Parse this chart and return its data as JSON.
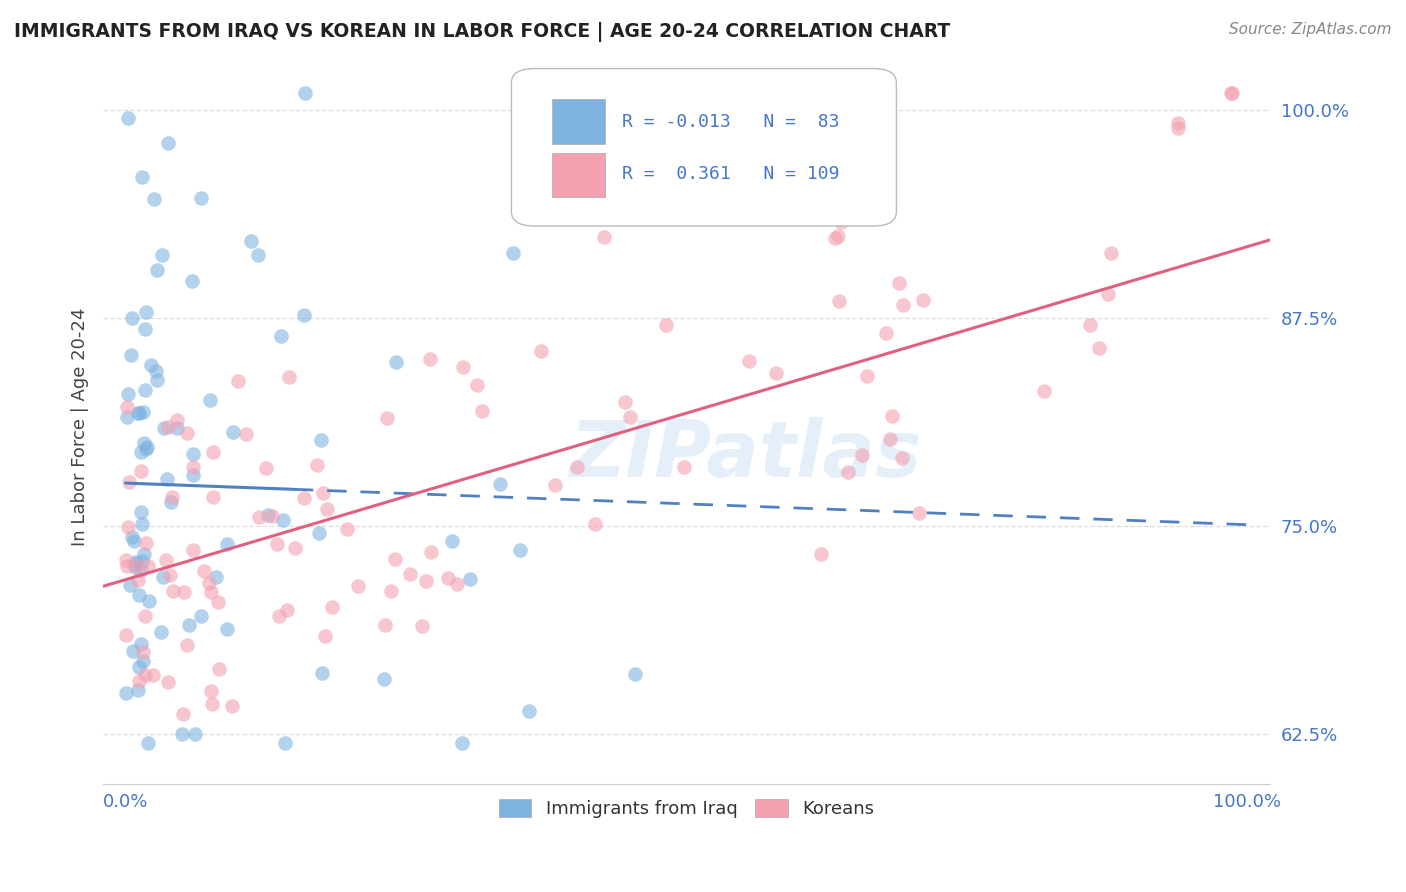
{
  "title": "IMMIGRANTS FROM IRAQ VS KOREAN IN LABOR FORCE | AGE 20-24 CORRELATION CHART",
  "source": "Source: ZipAtlas.com",
  "ylabel": "In Labor Force | Age 20-24",
  "xlim": [
    -0.02,
    1.02
  ],
  "ylim": [
    0.595,
    1.025
  ],
  "yticks": [
    0.625,
    0.75,
    0.875,
    1.0
  ],
  "ytick_labels": [
    "62.5%",
    "75.0%",
    "87.5%",
    "100.0%"
  ],
  "xticks": [
    0.0,
    1.0
  ],
  "xtick_labels": [
    "0.0%",
    "100.0%"
  ],
  "iraq_R": -0.013,
  "iraq_N": 83,
  "korean_R": 0.361,
  "korean_N": 109,
  "iraq_color": "#7EB3E0",
  "korean_color": "#F4A0B0",
  "iraq_line_color": "#5080C0",
  "korean_line_color": "#E06080",
  "watermark": "ZIPatlas",
  "background_color": "#ffffff",
  "grid_color": "#DDDDDD",
  "tick_color": "#4477CC",
  "title_color": "#222222",
  "source_color": "#888888"
}
